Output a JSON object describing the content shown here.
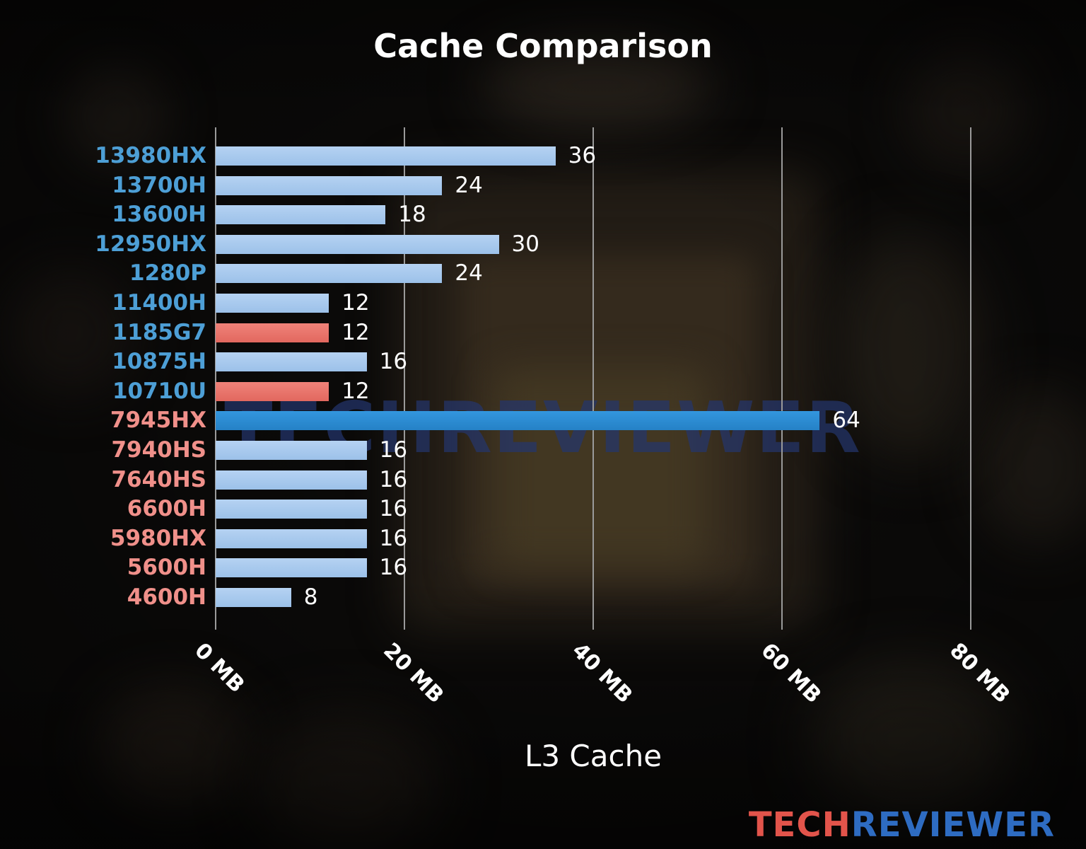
{
  "title": "Cache Comparison",
  "xlabel": "L3 Cache",
  "watermark": "TECHREVIEWER",
  "logo": {
    "part1": "TECH",
    "part2": "REVIEWER",
    "color1": "#e2544b",
    "color2": "#2e6cc2"
  },
  "palette": {
    "bar_default_top": "#b5d2f2",
    "bar_default_bottom": "#9cc1e9",
    "bar_red_top": "#ef8279",
    "bar_red_bottom": "#e2685f",
    "bar_highlight_top": "#3396de",
    "bar_highlight_bottom": "#2581c6",
    "label_intel": "#4d9fd6",
    "label_amd": "#f0908a",
    "value_text": "#ffffff",
    "grid": "#9a9a9a",
    "axis_text": "#ffffff",
    "watermark_color": "#24366e"
  },
  "chart_data": {
    "type": "bar",
    "orientation": "horizontal",
    "title": "Cache Comparison",
    "xlabel": "L3 Cache",
    "xlim": [
      0,
      80
    ],
    "grid": true,
    "x_ticks": [
      {
        "value": 0,
        "label": "0 MB"
      },
      {
        "value": 20,
        "label": "20 MB"
      },
      {
        "value": 40,
        "label": "40 MB"
      },
      {
        "value": 60,
        "label": "60 MB"
      },
      {
        "value": 80,
        "label": "80 MB"
      }
    ],
    "rows": [
      {
        "category": "13980HX",
        "value": 36,
        "bar": "default",
        "brand": "intel"
      },
      {
        "category": "13700H",
        "value": 24,
        "bar": "default",
        "brand": "intel"
      },
      {
        "category": "13600H",
        "value": 18,
        "bar": "default",
        "brand": "intel"
      },
      {
        "category": "12950HX",
        "value": 30,
        "bar": "default",
        "brand": "intel"
      },
      {
        "category": "1280P",
        "value": 24,
        "bar": "default",
        "brand": "intel"
      },
      {
        "category": "11400H",
        "value": 12,
        "bar": "default",
        "brand": "intel"
      },
      {
        "category": "1185G7",
        "value": 12,
        "bar": "red",
        "brand": "intel"
      },
      {
        "category": "10875H",
        "value": 16,
        "bar": "default",
        "brand": "intel"
      },
      {
        "category": "10710U",
        "value": 12,
        "bar": "red",
        "brand": "intel"
      },
      {
        "category": "7945HX",
        "value": 64,
        "bar": "highlight",
        "brand": "amd"
      },
      {
        "category": "7940HS",
        "value": 16,
        "bar": "default",
        "brand": "amd"
      },
      {
        "category": "7640HS",
        "value": 16,
        "bar": "default",
        "brand": "amd"
      },
      {
        "category": "6600H",
        "value": 16,
        "bar": "default",
        "brand": "amd"
      },
      {
        "category": "5980HX",
        "value": 16,
        "bar": "default",
        "brand": "amd"
      },
      {
        "category": "5600H",
        "value": 16,
        "bar": "default",
        "brand": "amd"
      },
      {
        "category": "4600H",
        "value": 8,
        "bar": "default",
        "brand": "amd"
      }
    ]
  }
}
